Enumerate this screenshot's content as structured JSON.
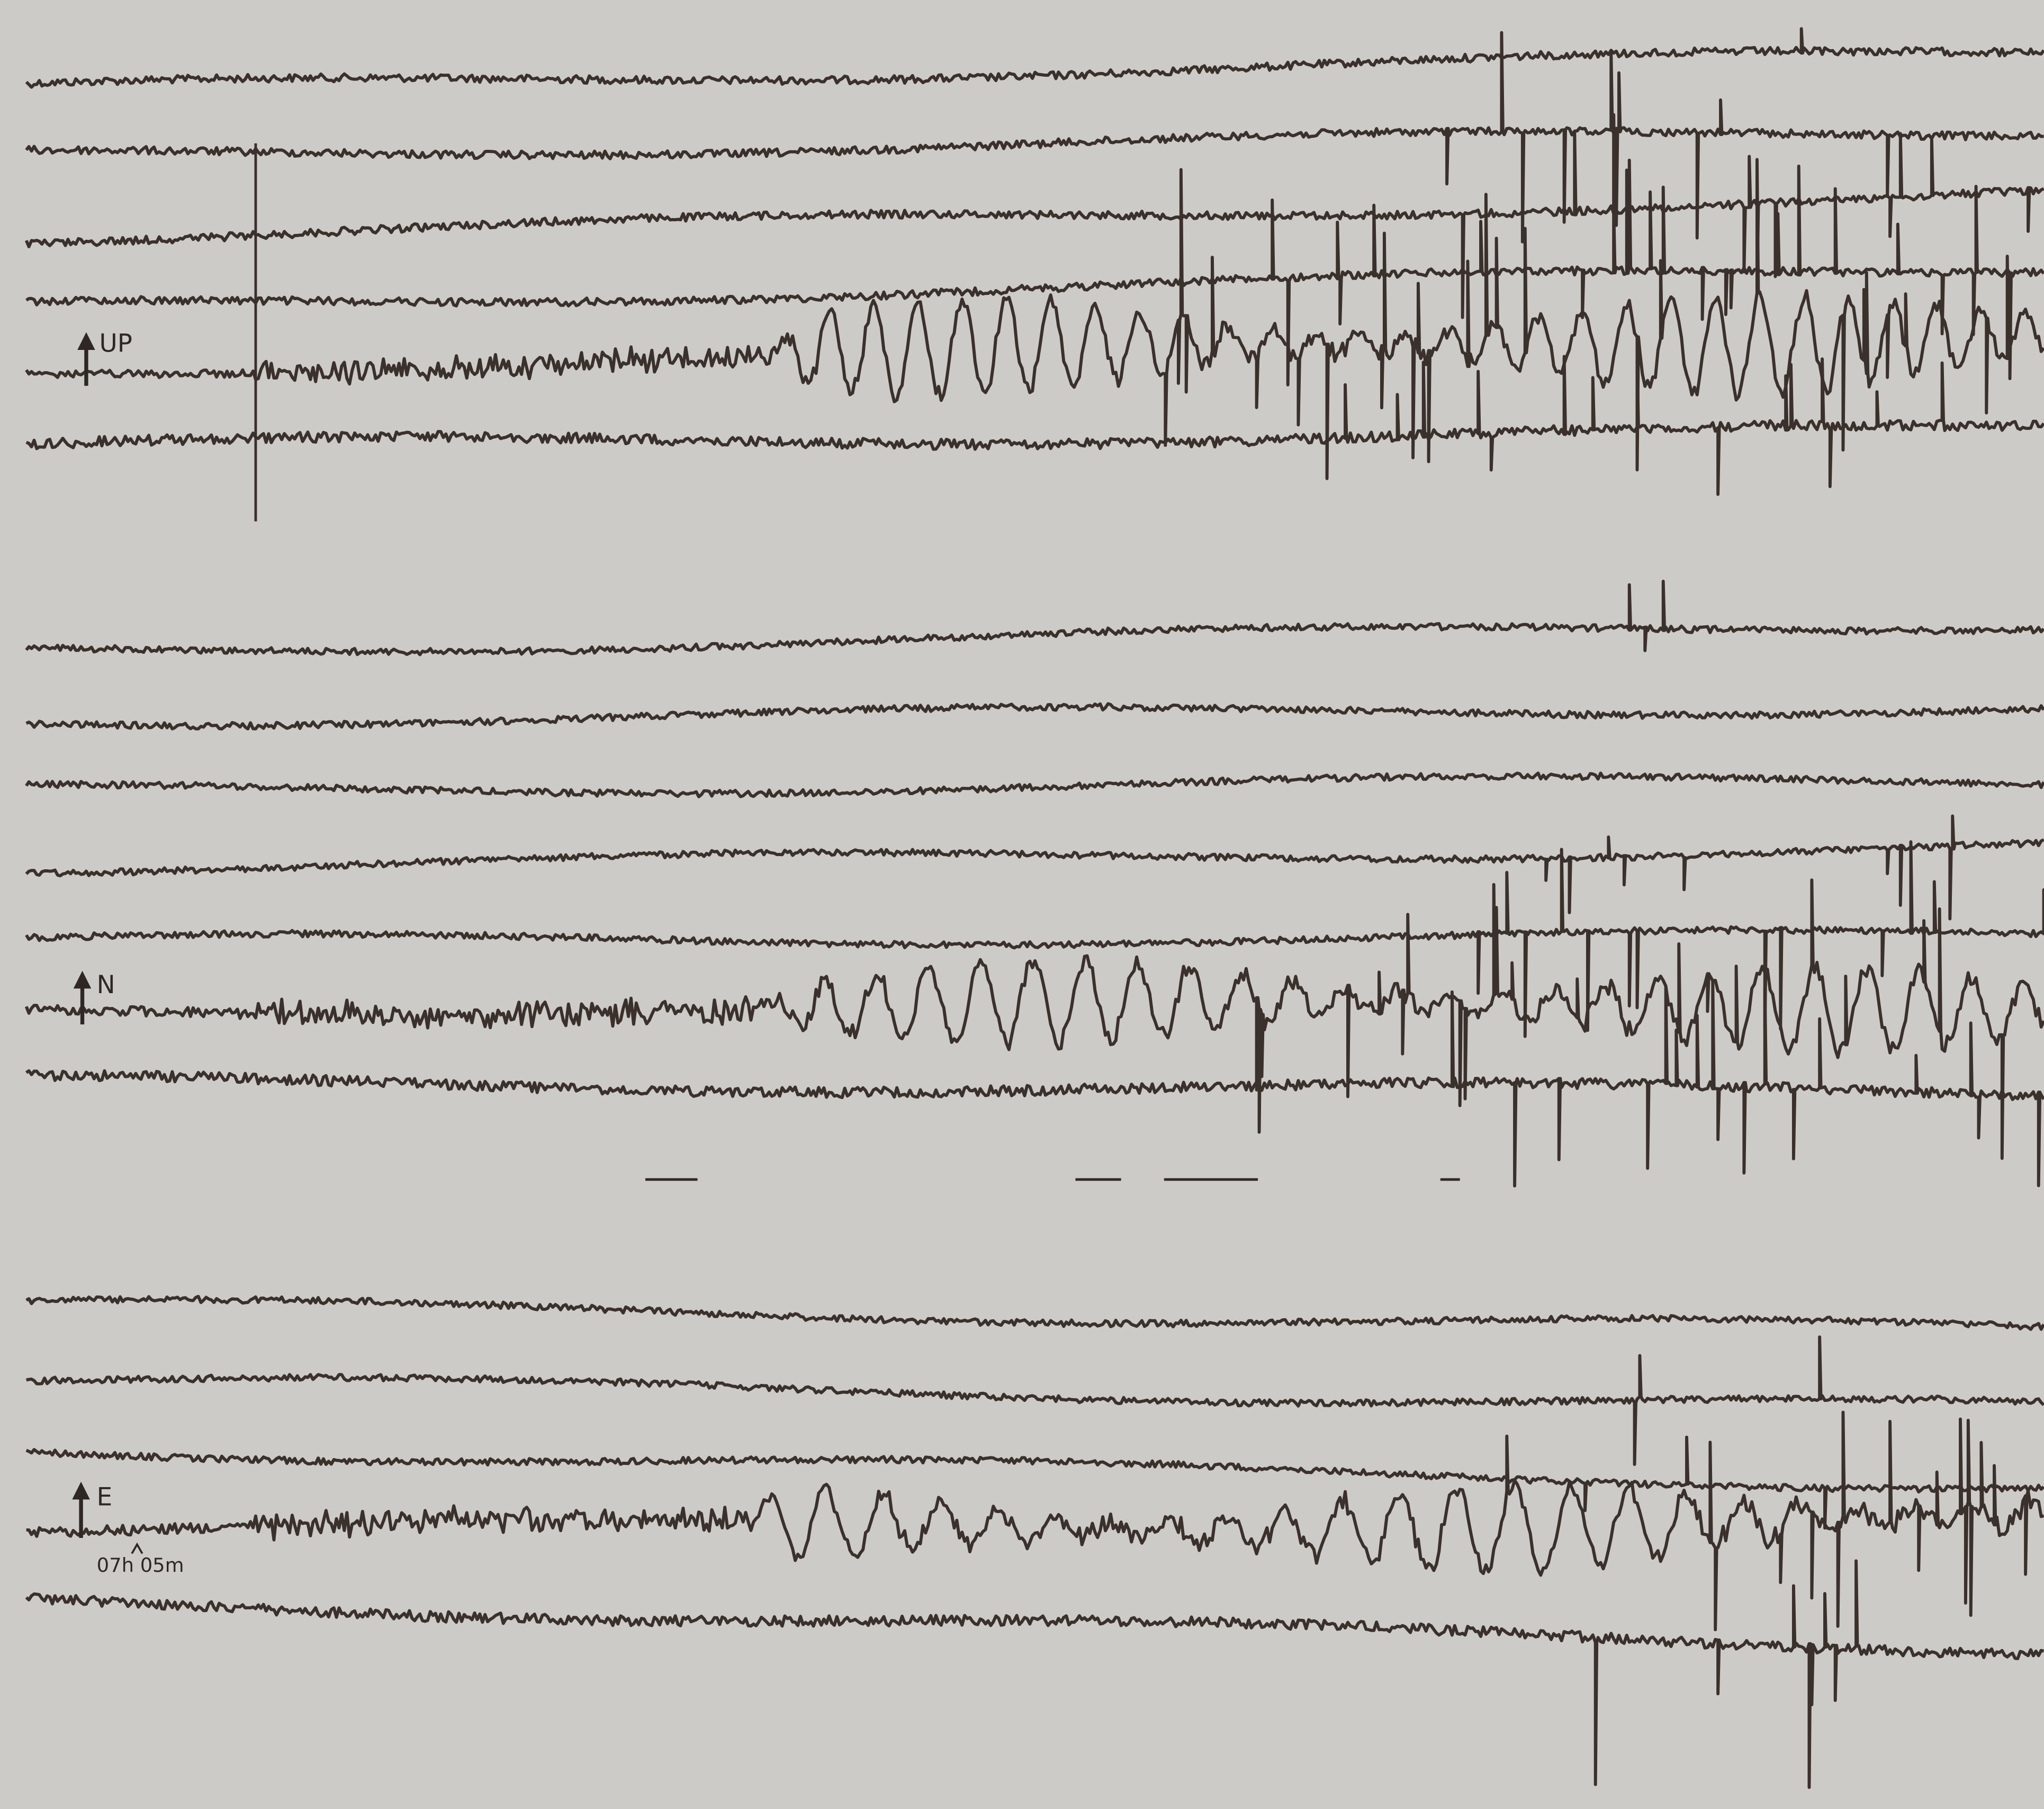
{
  "labels": {
    "up": "UP",
    "north": "N",
    "east": "E",
    "time": "07h 05m"
  }
}
